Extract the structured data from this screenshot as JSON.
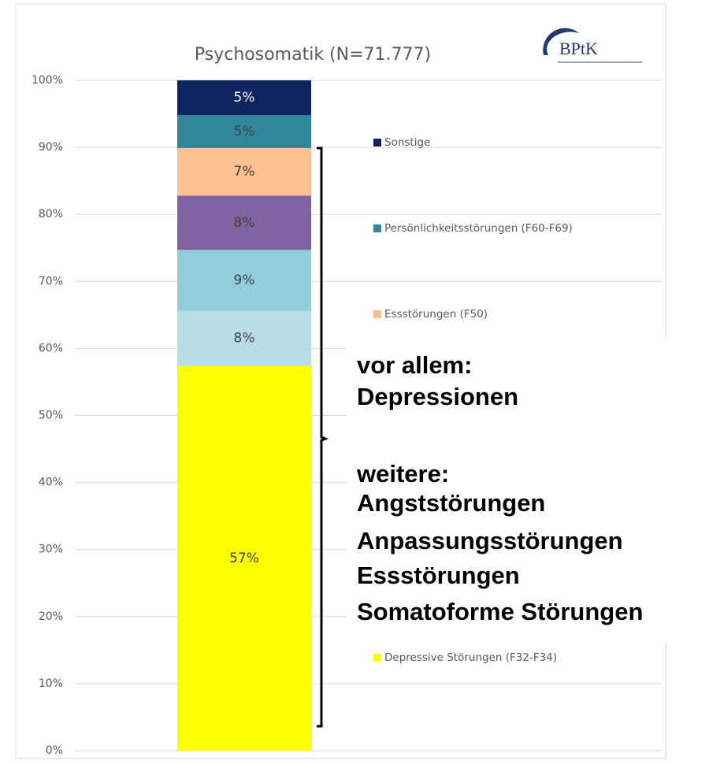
{
  "chart_data": {
    "type": "stacked_bar",
    "title": "Psychosomatik (N=71.777)",
    "logo": "BPtK",
    "categories": [
      null
    ],
    "series": [
      {
        "name": "Depressive Störungen (F32-F34)",
        "color": "#ffff00",
        "values": [
          57.4
        ],
        "value_labels": [
          "57%"
        ]
      },
      {
        "color": "#b7dee8",
        "values": [
          8.2
        ],
        "value_labels": [
          "8%"
        ]
      },
      {
        "color": "#92cddc",
        "values": [
          9.1
        ],
        "value_labels": [
          "9%"
        ]
      },
      {
        "color": "#8064a2",
        "values": [
          8.1
        ],
        "value_labels": [
          "8%"
        ]
      },
      {
        "name": "Essstörungen (F50)",
        "color": "#fac090",
        "values": [
          7.1
        ],
        "value_labels": [
          "7%"
        ]
      },
      {
        "name": "Persönlichkeitsstörungen (F60-F69)",
        "color": "#31869b",
        "values": [
          4.9
        ],
        "value_labels": [
          "5%"
        ]
      },
      {
        "name": "Sonstige",
        "color": "#0f2460",
        "values": [
          5.2
        ],
        "value_labels": [
          "5%"
        ]
      }
    ],
    "ylim": [
      0,
      100
    ],
    "yticks": [
      {
        "value": 0,
        "label": "0%"
      },
      {
        "value": 10,
        "label": "10%"
      },
      {
        "value": 20,
        "label": "20%"
      },
      {
        "value": 30,
        "label": "30%"
      },
      {
        "value": 40,
        "label": "40%"
      },
      {
        "value": 50,
        "label": "50%"
      },
      {
        "value": 60,
        "label": "60%"
      },
      {
        "value": 70,
        "label": "70%"
      },
      {
        "value": 80,
        "label": "80%"
      },
      {
        "value": 90,
        "label": "90%"
      },
      {
        "value": 100,
        "label": "100%"
      }
    ],
    "grid": true,
    "annotation": {
      "lines": [
        "vor allem:",
        "Depressionen",
        "weitere:",
        "Angststörungen",
        "Anpassungsstörungen",
        "Essstörungen",
        "Somatoforme Störungen"
      ]
    }
  }
}
